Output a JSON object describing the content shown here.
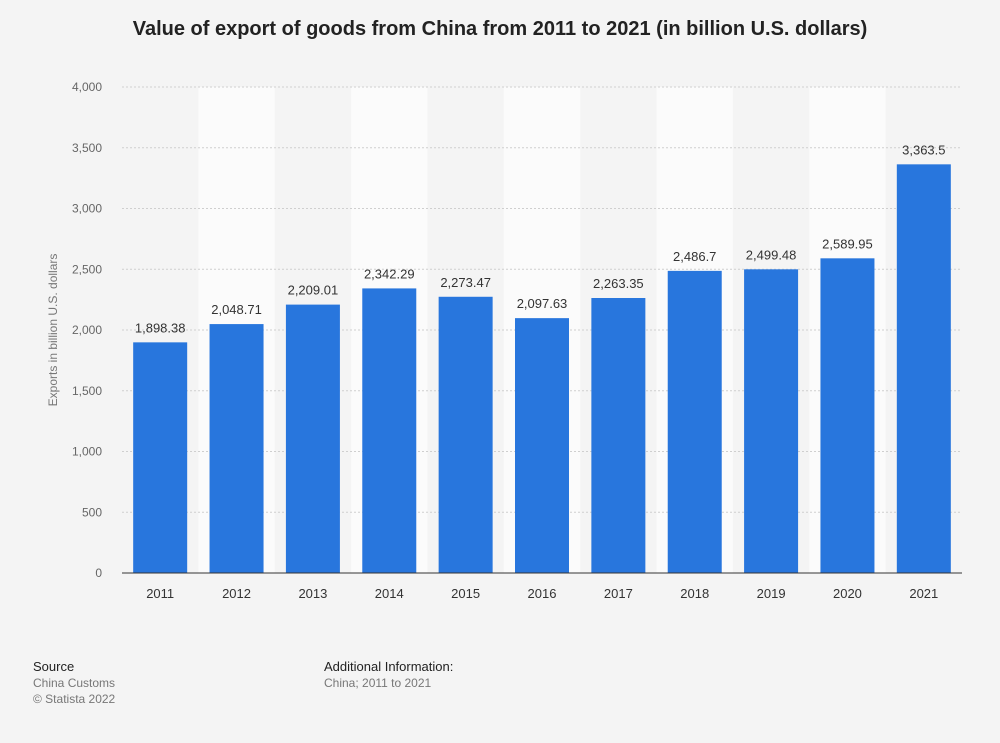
{
  "chart_title": "Value of export of goods from China from 2011 to 2021 (in billion U.S. dollars)",
  "footer": {
    "source_heading": "Source",
    "source_name": "China Customs",
    "copyright": "© Statista 2022",
    "info_heading": "Additional Information:",
    "info_text": "China; 2011 to 2021"
  },
  "colors": {
    "bar": "#2876dd",
    "band": "#fbfbfb",
    "grid": "#cfcfcf",
    "background": "#f4f4f4"
  },
  "chart_data": {
    "type": "bar",
    "title": "Value of export of goods from China from 2011 to 2021 (in billion U.S. dollars)",
    "xlabel": "",
    "ylabel": "Exports in billion U.S. dollars",
    "ylim": [
      0,
      4000
    ],
    "yticks": [
      0,
      500,
      1000,
      1500,
      2000,
      2500,
      3000,
      3500,
      4000
    ],
    "ytick_labels": [
      "0",
      "500",
      "1,000",
      "1,500",
      "2,000",
      "2,500",
      "3,000",
      "3,500",
      "4,000"
    ],
    "categories": [
      "2011",
      "2012",
      "2013",
      "2014",
      "2015",
      "2016",
      "2017",
      "2018",
      "2019",
      "2020",
      "2021"
    ],
    "values": [
      1898.38,
      2048.71,
      2209.01,
      2342.29,
      2273.47,
      2097.63,
      2263.35,
      2486.7,
      2499.48,
      2589.95,
      3363.5
    ],
    "value_labels": [
      "1,898.38",
      "2,048.71",
      "2,209.01",
      "2,342.29",
      "2,273.47",
      "2,097.63",
      "2,263.35",
      "2,486.7",
      "2,499.48",
      "2,589.95",
      "3,363.5"
    ],
    "grid": true,
    "legend": "none"
  }
}
